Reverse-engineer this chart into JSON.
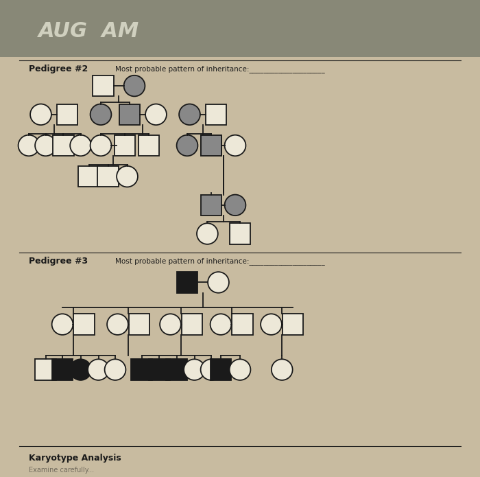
{
  "bg_color": "#c8bba0",
  "paper_color": "#ede8d8",
  "line_color": "#1a1a1a",
  "gray_fill": "#888888",
  "dark_fill": "#1a1a1a",
  "white_fill": "#ede8d8",
  "pedigree2_label": "Pedigree #2",
  "pedigree3_label": "Pedigree #3",
  "karyotype_label": "Karyotype Analysis",
  "inherit_text": "Most probable pattern of inheritance:",
  "s": 0.022
}
